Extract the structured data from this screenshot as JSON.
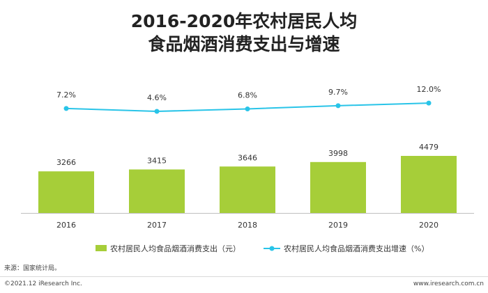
{
  "chart_data": {
    "type": "bar",
    "title_line1": "2016-2020年农村居民人均",
    "title_line2": "食品烟酒消费支出与增速",
    "categories": [
      "2016",
      "2017",
      "2018",
      "2019",
      "2020"
    ],
    "series": [
      {
        "name": "农村居民人均食品烟酒消费支出（元）",
        "type": "bar",
        "values": [
          3266,
          3415,
          3646,
          3998,
          4479
        ],
        "labels": [
          "3266",
          "3415",
          "3646",
          "3998",
          "4479"
        ],
        "color": "#a6ce39"
      },
      {
        "name": "农村居民人均食品烟酒消费支出增速（%）",
        "type": "line",
        "values": [
          7.2,
          4.6,
          6.8,
          9.7,
          12.0
        ],
        "labels": [
          "7.2%",
          "4.6%",
          "6.8%",
          "9.7%",
          "12.0%"
        ],
        "color": "#29c4e8"
      }
    ],
    "legend_position": "bottom",
    "grid": false
  },
  "source_text": "来源：国家统计局。",
  "footer": {
    "left": "©2021.12 iResearch Inc.",
    "right": "www.iresearch.com.cn"
  }
}
